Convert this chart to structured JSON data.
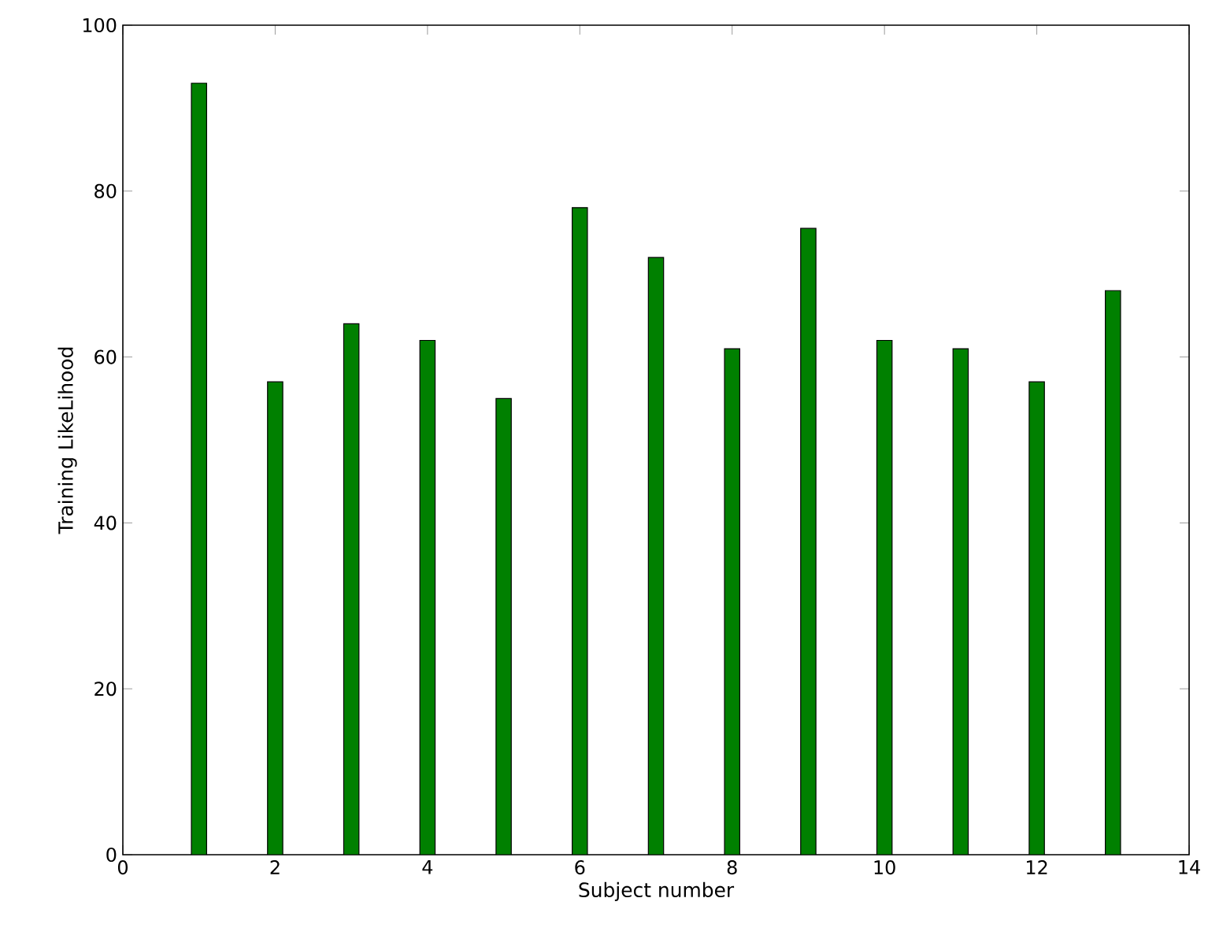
{
  "chart_data": {
    "type": "bar",
    "xlabel": "Subject number",
    "ylabel": "Training LikeLihood",
    "x": [
      1,
      2,
      3,
      4,
      5,
      6,
      7,
      8,
      9,
      10,
      11,
      12,
      13
    ],
    "values": [
      93,
      57,
      64,
      62,
      55,
      78,
      72,
      61,
      75.5,
      62,
      61,
      57,
      68
    ],
    "color": "#008000",
    "xlim": [
      0,
      14
    ],
    "xticks": [
      0,
      2,
      4,
      6,
      8,
      10,
      12,
      14
    ],
    "ylim": [
      0,
      100
    ],
    "yticks": [
      0,
      20,
      40,
      60,
      80,
      100
    ],
    "grid": false
  }
}
